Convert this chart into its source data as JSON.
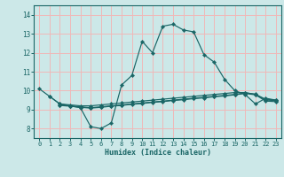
{
  "background_color": "#cce8e8",
  "grid_color": "#f0b8b8",
  "line_color": "#1a6666",
  "xlabel": "Humidex (Indice chaleur)",
  "xlim": [
    -0.5,
    23.5
  ],
  "ylim": [
    7.5,
    14.5
  ],
  "yticks": [
    8,
    9,
    10,
    11,
    12,
    13,
    14
  ],
  "xticks": [
    0,
    1,
    2,
    3,
    4,
    5,
    6,
    7,
    8,
    9,
    10,
    11,
    12,
    13,
    14,
    15,
    16,
    17,
    18,
    19,
    20,
    21,
    22,
    23
  ],
  "series1_x": [
    0,
    1,
    2,
    3,
    4,
    5,
    6,
    7,
    8,
    9,
    10,
    11,
    12,
    13,
    14,
    15,
    16,
    17,
    18,
    19,
    20,
    21,
    22,
    23
  ],
  "series1_y": [
    10.1,
    9.7,
    9.3,
    9.2,
    9.1,
    8.1,
    8.0,
    8.3,
    10.3,
    10.8,
    12.6,
    12.0,
    13.4,
    13.5,
    13.2,
    13.1,
    11.9,
    11.5,
    10.6,
    10.0,
    9.8,
    9.3,
    9.6,
    9.5
  ],
  "series2_x": [
    1,
    2,
    3,
    4,
    5,
    6,
    7,
    8,
    9,
    10,
    11,
    12,
    13,
    14,
    15,
    16,
    17,
    18,
    19,
    20,
    21,
    22,
    23
  ],
  "series2_y": [
    9.7,
    9.3,
    9.25,
    9.2,
    9.2,
    9.25,
    9.3,
    9.35,
    9.4,
    9.45,
    9.5,
    9.55,
    9.6,
    9.65,
    9.7,
    9.75,
    9.8,
    9.85,
    9.9,
    9.9,
    9.8,
    9.55,
    9.5
  ],
  "series3_x": [
    2,
    3,
    4,
    5,
    6,
    7,
    8,
    9,
    10,
    11,
    12,
    13,
    14,
    15,
    16,
    17,
    18,
    19,
    20,
    21,
    22,
    23
  ],
  "series3_y": [
    9.25,
    9.2,
    9.15,
    9.1,
    9.15,
    9.2,
    9.25,
    9.3,
    9.35,
    9.4,
    9.45,
    9.5,
    9.55,
    9.6,
    9.65,
    9.7,
    9.75,
    9.8,
    9.88,
    9.82,
    9.5,
    9.48
  ],
  "series4_x": [
    2,
    3,
    4,
    5,
    6,
    7,
    8,
    9,
    10,
    11,
    12,
    13,
    14,
    15,
    16,
    17,
    18,
    19,
    20,
    21,
    22,
    23
  ],
  "series4_y": [
    9.22,
    9.18,
    9.12,
    9.08,
    9.12,
    9.18,
    9.22,
    9.28,
    9.32,
    9.38,
    9.42,
    9.48,
    9.52,
    9.58,
    9.62,
    9.68,
    9.72,
    9.78,
    9.85,
    9.78,
    9.45,
    9.42
  ]
}
